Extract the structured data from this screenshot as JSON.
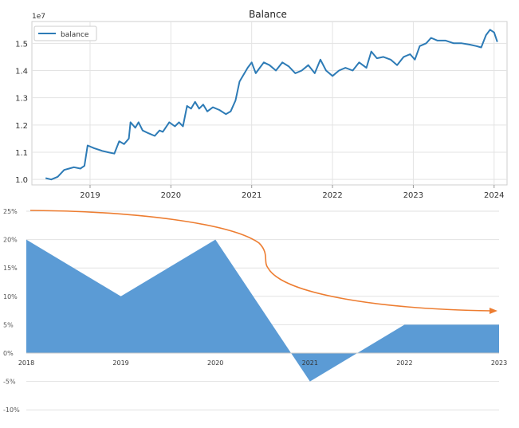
{
  "chart_data": [
    {
      "type": "line",
      "title": "Balance",
      "scale_label": "1e7",
      "xlabel": "",
      "ylabel": "",
      "x_ticks": [
        "2019",
        "2020",
        "2021",
        "2022",
        "2023",
        "2024"
      ],
      "x_range": [
        2018.28,
        2024.16
      ],
      "y_ticks": [
        "1.0",
        "1.1",
        "1.2",
        "1.3",
        "1.4",
        "1.5"
      ],
      "ylim": [
        0.98,
        1.58
      ],
      "grid": true,
      "legend": "top-left",
      "series": [
        {
          "name": "balance",
          "color": "#2d7bb6",
          "x": [
            2018.45,
            2018.52,
            2018.6,
            2018.68,
            2018.74,
            2018.8,
            2018.88,
            2018.93,
            2018.97,
            2019.05,
            2019.15,
            2019.22,
            2019.3,
            2019.36,
            2019.42,
            2019.48,
            2019.5,
            2019.56,
            2019.6,
            2019.65,
            2019.72,
            2019.8,
            2019.86,
            2019.9,
            2019.98,
            2020.05,
            2020.1,
            2020.15,
            2020.2,
            2020.25,
            2020.3,
            2020.35,
            2020.4,
            2020.45,
            2020.52,
            2020.6,
            2020.68,
            2020.74,
            2020.8,
            2020.85,
            2020.9,
            2020.95,
            2021.0,
            2021.05,
            2021.1,
            2021.15,
            2021.22,
            2021.3,
            2021.38,
            2021.46,
            2021.54,
            2021.62,
            2021.7,
            2021.78,
            2021.85,
            2021.92,
            2022.0,
            2022.08,
            2022.16,
            2022.25,
            2022.33,
            2022.42,
            2022.48,
            2022.55,
            2022.63,
            2022.72,
            2022.8,
            2022.88,
            2022.96,
            2023.02,
            2023.08,
            2023.16,
            2023.22,
            2023.3,
            2023.4,
            2023.5,
            2023.6,
            2023.7,
            2023.78,
            2023.84,
            2023.9,
            2023.95,
            2024.0,
            2024.04
          ],
          "values": [
            1.005,
            1.0,
            1.01,
            1.035,
            1.04,
            1.045,
            1.04,
            1.05,
            1.125,
            1.115,
            1.105,
            1.1,
            1.095,
            1.14,
            1.13,
            1.15,
            1.21,
            1.19,
            1.21,
            1.18,
            1.17,
            1.16,
            1.18,
            1.175,
            1.21,
            1.195,
            1.21,
            1.195,
            1.27,
            1.26,
            1.285,
            1.26,
            1.275,
            1.25,
            1.265,
            1.255,
            1.24,
            1.25,
            1.29,
            1.36,
            1.385,
            1.41,
            1.43,
            1.39,
            1.41,
            1.43,
            1.42,
            1.4,
            1.43,
            1.415,
            1.39,
            1.4,
            1.42,
            1.39,
            1.44,
            1.4,
            1.38,
            1.4,
            1.41,
            1.4,
            1.43,
            1.41,
            1.47,
            1.445,
            1.45,
            1.44,
            1.42,
            1.45,
            1.46,
            1.44,
            1.49,
            1.5,
            1.52,
            1.51,
            1.51,
            1.5,
            1.5,
            1.495,
            1.49,
            1.485,
            1.53,
            1.55,
            1.54,
            1.505
          ]
        }
      ]
    },
    {
      "type": "area",
      "title": "",
      "xlabel": "",
      "ylabel": "",
      "categories": [
        "2018",
        "2019",
        "2020",
        "2021",
        "2022",
        "2023"
      ],
      "y_ticks": [
        "25%",
        "20%",
        "15%",
        "10%",
        "5%",
        "0%",
        "-5%",
        "-10%"
      ],
      "ylim": [
        -10,
        25
      ],
      "grid": true,
      "series": [
        {
          "name": "",
          "color": "#5b9bd5",
          "values": [
            20,
            10,
            20,
            -5,
            5,
            5
          ]
        }
      ],
      "arrow_color": "#ed7d31"
    }
  ]
}
